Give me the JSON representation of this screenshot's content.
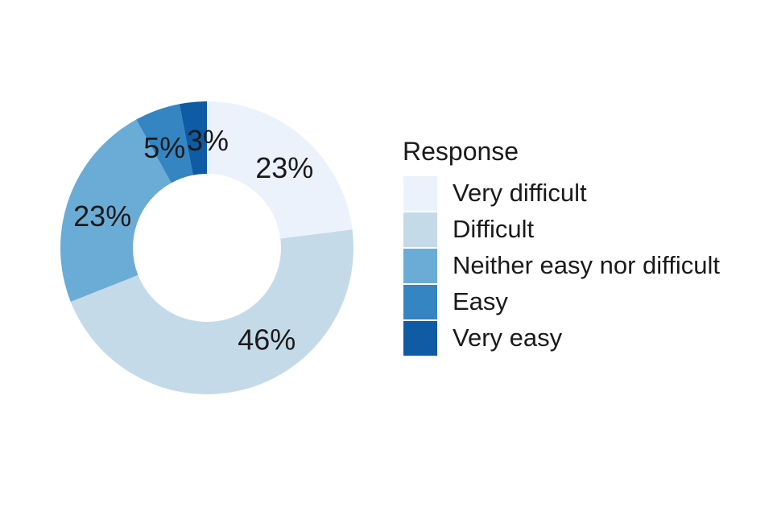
{
  "chart_data": {
    "type": "pie",
    "subtype": "donut",
    "legend_title": "Response",
    "legend_position": "right",
    "direction": "clockwise",
    "start_angle_deg": 0,
    "categories": [
      "Very difficult",
      "Difficult",
      "Neither easy nor difficult",
      "Easy",
      "Very easy"
    ],
    "values": [
      23,
      46,
      23,
      5,
      3
    ],
    "labels": [
      "23%",
      "46%",
      "23%",
      "5%",
      "3%"
    ],
    "colors": [
      "#ECF2FB",
      "#C5DAE9",
      "#6BACD7",
      "#3585C2",
      "#0F5BA4"
    ],
    "unit": "percent",
    "background_color": "#FFFFFF",
    "text_color": "#1A1A1A"
  }
}
